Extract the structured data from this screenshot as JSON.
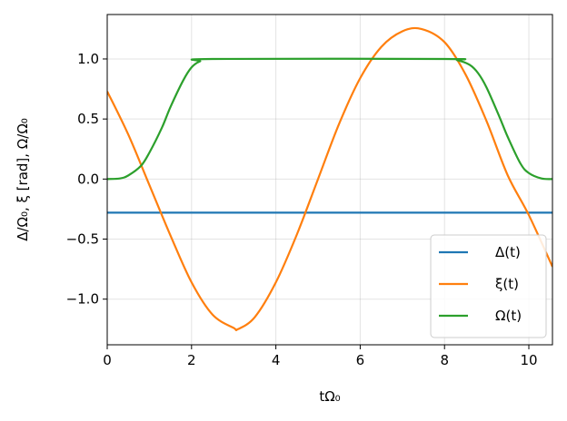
{
  "chart_data": {
    "type": "line",
    "title": "",
    "xlabel": "tΩ₀",
    "ylabel": "Δ/Ω₀, ξ [rad], Ω/Ω₀",
    "xlim": [
      0,
      10.56
    ],
    "ylim": [
      -1.38,
      1.37
    ],
    "grid": true,
    "legend_position": "lower-right",
    "x_ticks": [
      0,
      2,
      4,
      6,
      8,
      10
    ],
    "x_tick_labels": [
      "0",
      "2",
      "4",
      "6",
      "8",
      "10"
    ],
    "y_ticks": [
      -1.0,
      -0.5,
      0.0,
      0.5,
      1.0
    ],
    "y_tick_labels": [
      "−1.0",
      "−0.5",
      "0.0",
      "0.5",
      "1.0"
    ],
    "series": [
      {
        "name": "Δ(t)",
        "color": "#1f77b4",
        "x": [
          0,
          10.56
        ],
        "y": [
          -0.28,
          -0.28
        ]
      },
      {
        "name": "ξ(t)",
        "color": "#ff7f0e",
        "x": [
          0,
          0.5,
          1.0,
          1.5,
          2.0,
          2.5,
          3.0,
          3.1,
          3.5,
          4.0,
          4.5,
          5.0,
          5.5,
          6.0,
          6.5,
          7.0,
          7.45,
          8.0,
          8.5,
          9.0,
          9.5,
          10.0,
          10.56
        ],
        "y": [
          0.73,
          0.37,
          -0.05,
          -0.47,
          -0.86,
          -1.13,
          -1.24,
          -1.25,
          -1.15,
          -0.86,
          -0.46,
          0.0,
          0.46,
          0.84,
          1.1,
          1.23,
          1.25,
          1.14,
          0.87,
          0.48,
          0.03,
          -0.3,
          -0.73
        ]
      },
      {
        "name": "Ω(t)",
        "color": "#2ca02c",
        "x": [
          0,
          0.3,
          0.5,
          0.8,
          1.0,
          1.3,
          1.5,
          1.8,
          2.0,
          2.2,
          2.5,
          8.0,
          8.3,
          8.6,
          8.8,
          9.0,
          9.3,
          9.5,
          9.8,
          10.0,
          10.3,
          10.56
        ],
        "y": [
          0.0,
          0.005,
          0.03,
          0.11,
          0.22,
          0.43,
          0.6,
          0.82,
          0.93,
          0.98,
          1.0,
          1.0,
          0.99,
          0.95,
          0.88,
          0.76,
          0.52,
          0.35,
          0.13,
          0.05,
          0.005,
          0.0
        ]
      }
    ]
  }
}
